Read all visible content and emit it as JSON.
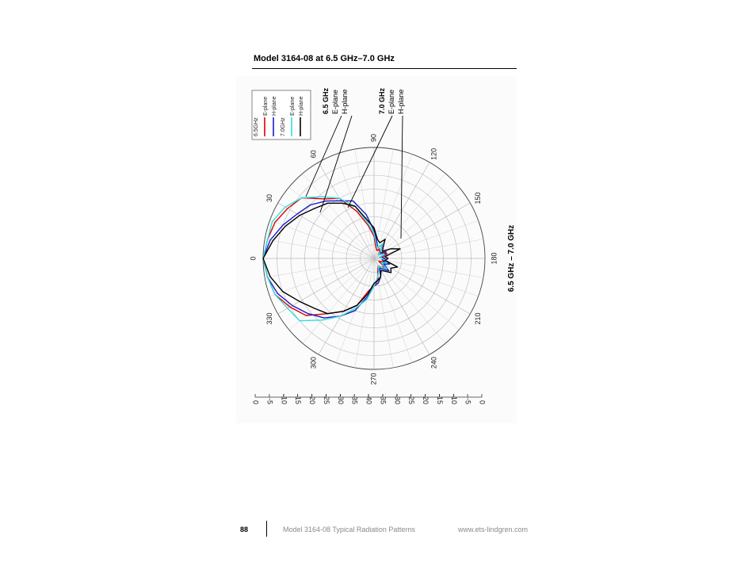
{
  "header": {
    "title": "Model 3164-08 at 6.5 GHz–7.0 GHz"
  },
  "footer": {
    "page_number": "88",
    "doc_title": "Model 3164-08 Typical Radiation Patterns",
    "url": "www.ets-lindgren.com"
  },
  "chart_data": {
    "type": "polar",
    "title": "6.5 GHz – 7.0 GHz",
    "angle_labels": [
      "0",
      "30",
      "60",
      "90",
      "120",
      "150",
      "180",
      "210",
      "240",
      "270",
      "300",
      "330"
    ],
    "radial_scale_labels": [
      "0",
      "-5",
      "-10",
      "-15",
      "-20",
      "-25",
      "-30",
      "-35",
      "-40",
      "-35",
      "-30",
      "-25",
      "-20",
      "-15",
      "-10",
      "-5",
      "0"
    ],
    "rlim": [
      -40,
      0
    ],
    "legend": {
      "placement": "top-left",
      "groups": [
        {
          "label": "6.5GHz",
          "items": [
            {
              "name": "E-plane",
              "color": "#e00000"
            },
            {
              "name": "H-plane",
              "color": "#1a1acc"
            }
          ]
        },
        {
          "label": "7.0GHz",
          "items": [
            {
              "name": "E-plane",
              "color": "#33dddd"
            },
            {
              "name": "H-plane",
              "color": "#000000"
            }
          ]
        }
      ]
    },
    "callouts": [
      {
        "freq": "6.5 GHz",
        "lines": [
          "E-plane",
          "H-plane"
        ]
      },
      {
        "freq": "7.0 GHz",
        "lines": [
          "E-plane",
          "H-plane"
        ]
      }
    ],
    "series": [
      {
        "name": "E-plane",
        "group": "6.5GHz",
        "color": "#e00000",
        "angles": [
          0,
          10,
          20,
          30,
          40,
          50,
          60,
          70,
          80,
          90,
          100,
          110,
          120,
          130,
          140,
          150,
          160,
          170,
          180,
          190,
          200,
          210,
          220,
          230,
          240,
          250,
          260,
          270,
          280,
          290,
          300,
          310,
          320,
          330,
          340,
          350
        ],
        "values": [
          0,
          -1,
          -2,
          -4,
          -6,
          -12,
          -15,
          -22,
          -28,
          -32,
          -36,
          -37,
          -36,
          -37,
          -38,
          -36,
          -35,
          -37,
          -36,
          -37,
          -36,
          -38,
          -35,
          -36,
          -37,
          -36,
          -32,
          -30,
          -28,
          -22,
          -18,
          -14,
          -8,
          -5,
          -2,
          -1
        ]
      },
      {
        "name": "H-plane",
        "group": "6.5GHz",
        "color": "#1a1acc",
        "angles": [
          0,
          10,
          20,
          30,
          40,
          50,
          60,
          70,
          80,
          90,
          100,
          110,
          120,
          130,
          140,
          150,
          160,
          170,
          180,
          190,
          200,
          210,
          220,
          230,
          240,
          250,
          260,
          270,
          280,
          290,
          300,
          310,
          320,
          330,
          340,
          350
        ],
        "values": [
          0,
          -2,
          -5,
          -8,
          -10,
          -13,
          -16,
          -18,
          -24,
          -30,
          -34,
          -36,
          -34,
          -36,
          -37,
          -35,
          -36,
          -38,
          -36,
          -37,
          -34,
          -36,
          -33,
          -35,
          -36,
          -33,
          -31,
          -30,
          -26,
          -20,
          -16,
          -12,
          -9,
          -6,
          -3,
          -1
        ]
      },
      {
        "name": "E-plane",
        "group": "7.0GHz",
        "color": "#33dddd",
        "angles": [
          0,
          10,
          20,
          30,
          40,
          50,
          60,
          70,
          80,
          90,
          100,
          110,
          120,
          130,
          140,
          150,
          160,
          170,
          180,
          190,
          200,
          210,
          220,
          230,
          240,
          250,
          260,
          270,
          280,
          290,
          300,
          310,
          320,
          330,
          340,
          350
        ],
        "values": [
          0,
          -1,
          -1,
          -3,
          -6,
          -11,
          -15,
          -20,
          -27,
          -31,
          -35,
          -36,
          -34,
          -36,
          -38,
          -37,
          -36,
          -38,
          -37,
          -36,
          -35,
          -37,
          -34,
          -36,
          -37,
          -35,
          -33,
          -30,
          -25,
          -21,
          -16,
          -11,
          -5,
          -4,
          -2,
          -1
        ]
      },
      {
        "name": "H-plane",
        "group": "7.0GHz",
        "color": "#000000",
        "angles": [
          0,
          10,
          20,
          30,
          40,
          50,
          60,
          70,
          80,
          90,
          100,
          110,
          120,
          130,
          140,
          150,
          160,
          170,
          180,
          190,
          200,
          210,
          220,
          230,
          240,
          250,
          260,
          270,
          280,
          290,
          300,
          310,
          320,
          330,
          340,
          350
        ],
        "values": [
          0,
          -3,
          -6,
          -9,
          -12,
          -14,
          -17,
          -20,
          -26,
          -29,
          -33,
          -34,
          -32,
          -35,
          -36,
          -33,
          -30,
          -36,
          -35,
          -36,
          -31,
          -33,
          -32,
          -34,
          -35,
          -33,
          -32,
          -31,
          -27,
          -22,
          -18,
          -14,
          -12,
          -9,
          -5,
          -2
        ]
      }
    ]
  }
}
